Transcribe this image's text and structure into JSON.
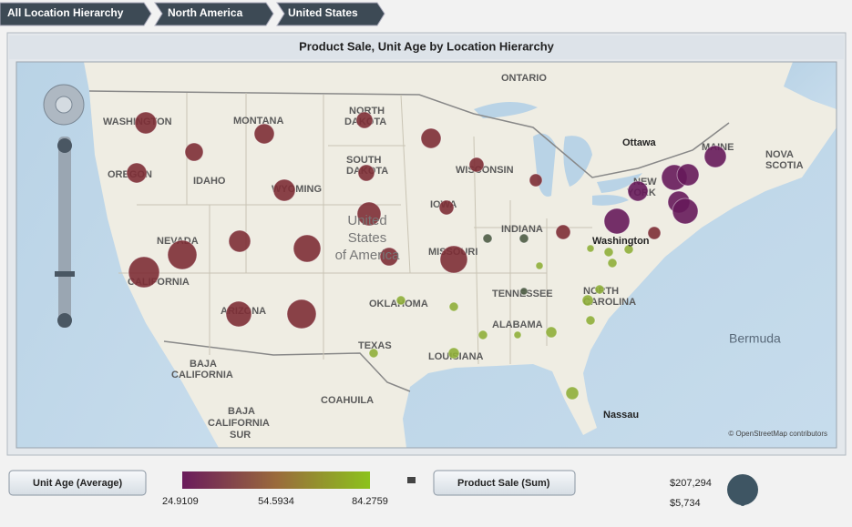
{
  "breadcrumbs": [
    "All Location Hierarchy",
    "North America",
    "United States"
  ],
  "title": "Product Sale, Unit Age by Location Hierarchy",
  "map_labels": [
    "ONTARIO",
    "WASHINGTON",
    "MONTANA",
    "NORTH",
    "DAKOTA",
    "OREGON",
    "IDAHO",
    "SOUTH",
    "DAKOTA",
    "WYOMING",
    "WISCONSIN",
    "IOWA",
    "NEVADA",
    "CALIFORNIA",
    "INDIANA",
    "MISSOURI",
    "ARIZONA",
    "OKLAHOMA",
    "TENNESSEE",
    "NORTH",
    "CAROLINA",
    "ALABAMA",
    "TEXAS",
    "LOUISIANA",
    "BAJA",
    "CALIFORNIA",
    "BAJA",
    "CALIFORNIA",
    "SUR",
    "COAHUILA",
    "NEW",
    "YORK",
    "MAINE",
    "NOVA",
    "SCOTIA"
  ],
  "country_label": [
    "United",
    "States",
    "of America"
  ],
  "cities": [
    "Ottawa",
    "Washington",
    "Nassau"
  ],
  "ocean_label": "Bermuda",
  "attribution": "© OpenStreetMap contributors",
  "legend": {
    "color_button": "Unit Age (Average)",
    "color_min": "24.9109",
    "color_mid": "54.5934",
    "color_max": "84.2759",
    "size_button": "Product Sale (Sum)",
    "size_max": "$207,294",
    "size_min": "$5,734"
  }
}
